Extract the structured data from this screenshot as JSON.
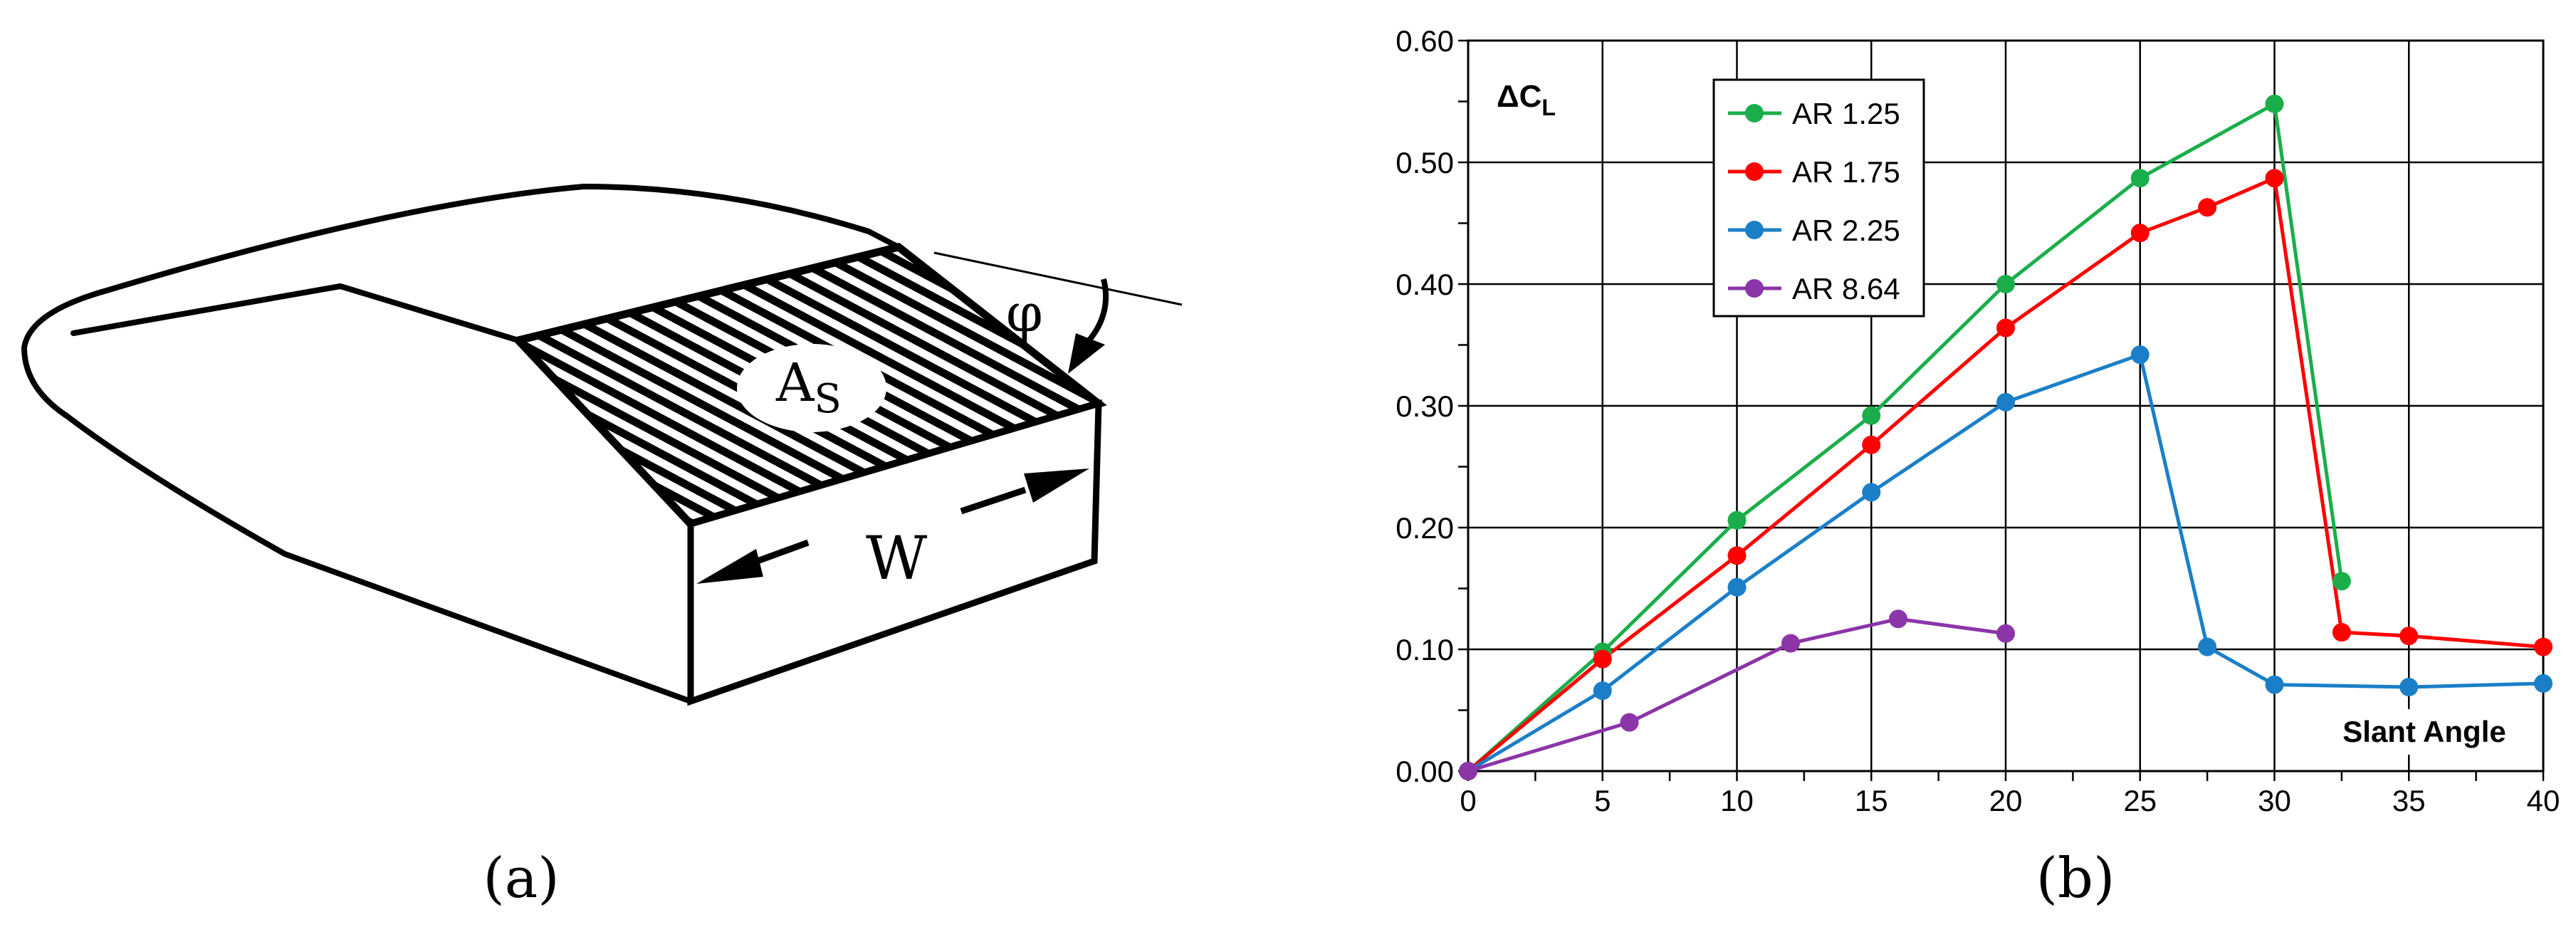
{
  "panel_a": {
    "caption": "(a)",
    "area_label": "A",
    "area_subscript": "S",
    "width_label": "W",
    "angle_label": "φ"
  },
  "panel_b": {
    "caption": "(b)"
  },
  "colors": {
    "AR 1.25": "#1aae4a",
    "AR 1.75": "#ff0000",
    "AR 2.25": "#1b7fc8",
    "AR 8.64": "#8b35a8"
  },
  "chart_data": {
    "type": "line",
    "ylabel_main": "ΔC",
    "ylabel_sub": "L",
    "xlabel": "Slant Angle",
    "xlim": [
      0,
      40
    ],
    "ylim": [
      0,
      0.6
    ],
    "xticks": [
      0,
      5,
      10,
      15,
      20,
      25,
      30,
      35,
      40
    ],
    "xtick_labels": [
      "0",
      "5",
      "10",
      "15",
      "20",
      "25",
      "30",
      "35",
      "40"
    ],
    "yticks": [
      0,
      0.1,
      0.2,
      0.3,
      0.4,
      0.5,
      0.6
    ],
    "ytick_labels": [
      "0.00",
      "0.10",
      "0.20",
      "0.30",
      "0.40",
      "0.50",
      "0.60"
    ],
    "grid": true,
    "legend_position": "top-left",
    "series": [
      {
        "name": "AR 1.25",
        "x": [
          0,
          5,
          10,
          15,
          20,
          25,
          30,
          32.5
        ],
        "y": [
          0,
          0.098,
          0.206,
          0.292,
          0.4,
          0.487,
          0.548,
          0.156
        ]
      },
      {
        "name": "AR 1.75",
        "x": [
          0,
          5,
          10,
          15,
          20,
          25,
          27.5,
          30,
          32.5,
          35,
          40
        ],
        "y": [
          0,
          0.092,
          0.177,
          0.268,
          0.364,
          0.442,
          0.463,
          0.487,
          0.114,
          0.111,
          0.102
        ]
      },
      {
        "name": "AR 2.25",
        "x": [
          0,
          5,
          10,
          15,
          20,
          25,
          27.5,
          30,
          35,
          40
        ],
        "y": [
          0,
          0.066,
          0.151,
          0.229,
          0.303,
          0.342,
          0.102,
          0.071,
          0.069,
          0.072
        ]
      },
      {
        "name": "AR 8.64",
        "x": [
          0,
          6,
          12,
          16,
          20
        ],
        "y": [
          0,
          0.04,
          0.105,
          0.125,
          0.113
        ]
      }
    ]
  }
}
